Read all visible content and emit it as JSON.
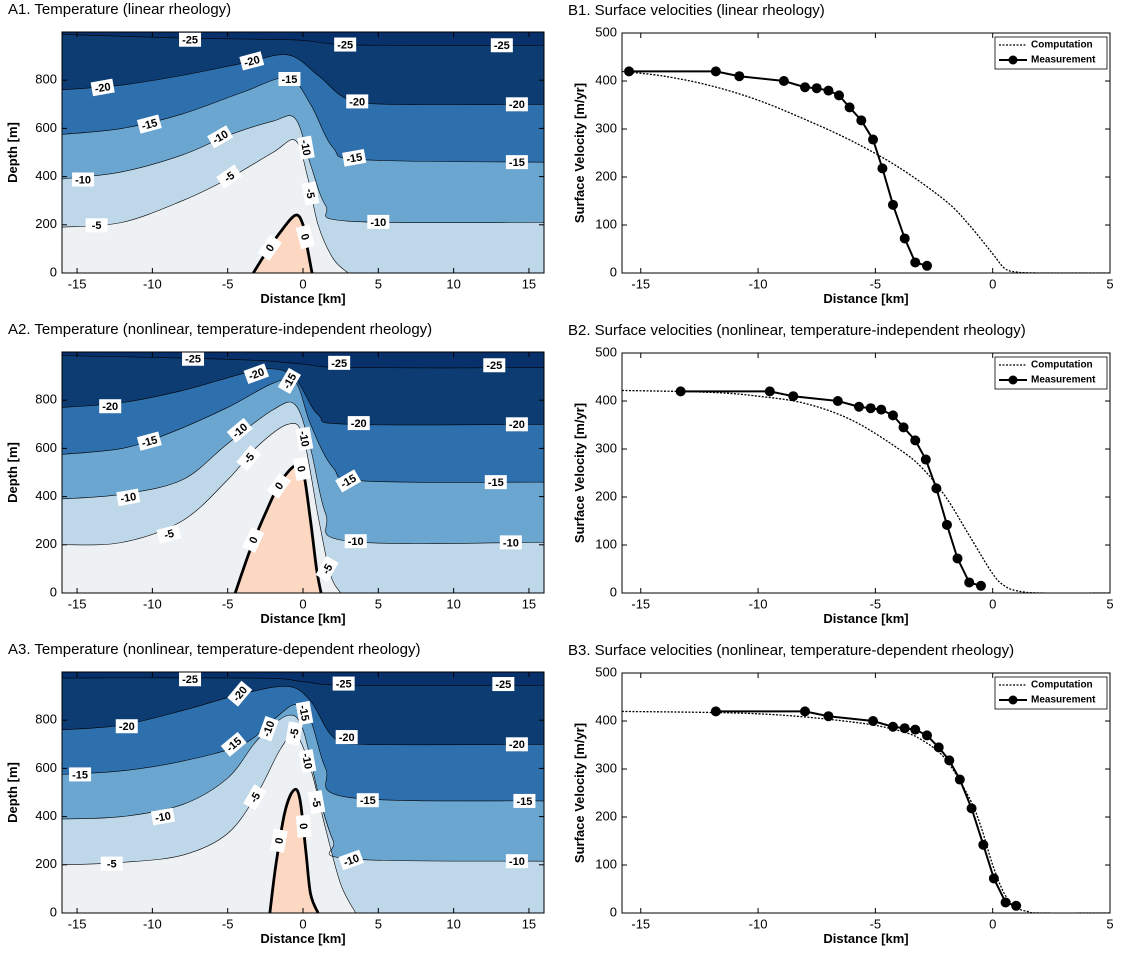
{
  "chart_data": [
    {
      "type": "contour",
      "title": "A1. Temperature (linear rheology)",
      "xlabel": "Distance [km]",
      "ylabel": "Depth [m]",
      "xlim": [
        -16,
        16
      ],
      "ylim": [
        0,
        1000
      ],
      "xticks": [
        -15,
        -10,
        -5,
        0,
        5,
        10,
        15
      ],
      "yticks": [
        0,
        200,
        400,
        600,
        800
      ],
      "background_color": "#08306b",
      "contours": [
        {
          "level": -25,
          "color": "#0d3c72",
          "x": [
            -16,
            -8,
            -3,
            0,
            2,
            5,
            16
          ],
          "y": [
            990,
            975,
            970,
            965,
            950,
            945,
            945
          ]
        },
        {
          "level": -20,
          "color": "#2e6fae",
          "x": [
            -16,
            -12,
            -8,
            -4,
            -1,
            1,
            3,
            6,
            16
          ],
          "y": [
            760,
            780,
            820,
            870,
            905,
            820,
            720,
            700,
            700
          ]
        },
        {
          "level": -15,
          "color": "#6aa6d0",
          "x": [
            -16,
            -12,
            -8,
            -4,
            -1,
            0.5,
            2,
            4,
            16
          ],
          "y": [
            575,
            600,
            660,
            750,
            810,
            700,
            520,
            470,
            460
          ]
        },
        {
          "level": -10,
          "color": "#bed8ea",
          "x": [
            -16,
            -12,
            -8,
            -5,
            -2,
            -0.5,
            0.5,
            1.5,
            3,
            16
          ],
          "y": [
            390,
            420,
            490,
            570,
            630,
            640,
            450,
            280,
            215,
            210
          ]
        },
        {
          "level": -5,
          "color": "#eef1f3",
          "x": [
            -16,
            -12,
            -8,
            -5,
            -2,
            -0.5,
            0.3,
            1,
            2,
            3
          ],
          "y": [
            190,
            210,
            300,
            390,
            500,
            550,
            400,
            200,
            60,
            0
          ]
        },
        {
          "level": 0,
          "color": "#fcd8c3",
          "x": [
            -3.3,
            -2.5,
            -1.5,
            -0.5,
            0,
            0.3,
            0.6
          ],
          "y": [
            0,
            80,
            170,
            240,
            200,
            100,
            0
          ]
        }
      ]
    },
    {
      "type": "line",
      "title": "B1. Surface velocities (linear rheology)",
      "xlabel": "Distance [km]",
      "ylabel": "Surface Velocity [m/yr]",
      "xlim": [
        -15.8,
        5
      ],
      "ylim": [
        0,
        500
      ],
      "xticks": [
        -15,
        -10,
        -5,
        0,
        5
      ],
      "yticks": [
        0,
        100,
        200,
        300,
        400,
        500
      ],
      "legend": "upper right",
      "series": [
        {
          "name": "Computation",
          "color": "#000000",
          "style": "dotted",
          "x": [
            -15.8,
            -14,
            -12,
            -10,
            -8,
            -6,
            -4,
            -2,
            -1,
            0,
            0.5,
            1,
            2,
            5
          ],
          "values": [
            420,
            410,
            390,
            360,
            320,
            275,
            220,
            150,
            100,
            40,
            10,
            2,
            0,
            0
          ]
        },
        {
          "name": "Measurement",
          "color": "#000000",
          "style": "solid",
          "marker": "circle",
          "x": [
            -15.5,
            -11.8,
            -10.8,
            -8.9,
            -8.0,
            -7.5,
            -7.0,
            -6.55,
            -6.1,
            -5.6,
            -5.1,
            -4.7,
            -4.25,
            -3.75,
            -3.3,
            -2.8
          ],
          "values": [
            420,
            420,
            410,
            400,
            387,
            385,
            380,
            370,
            345,
            318,
            278,
            218,
            142,
            72,
            22,
            15
          ]
        }
      ]
    },
    {
      "type": "contour",
      "title": "A2. Temperature (nonlinear, temperature-independent rheology)",
      "xlabel": "Distance [km]",
      "ylabel": "Depth [m]",
      "xlim": [
        -16,
        16
      ],
      "ylim": [
        0,
        1000
      ],
      "xticks": [
        -15,
        -10,
        -5,
        0,
        5,
        10,
        15
      ],
      "yticks": [
        0,
        200,
        400,
        600,
        800
      ],
      "background_color": "#08306b",
      "contours": [
        {
          "level": -25,
          "color": "#0d3c72",
          "x": [
            -16,
            -8,
            -3,
            0,
            3,
            16
          ],
          "y": [
            985,
            975,
            965,
            950,
            935,
            935
          ]
        },
        {
          "level": -20,
          "color": "#2e6fae",
          "x": [
            -16,
            -12,
            -8,
            -4,
            -2,
            -0.5,
            1,
            3,
            16
          ],
          "y": [
            770,
            790,
            840,
            910,
            930,
            890,
            740,
            700,
            700
          ]
        },
        {
          "level": -15,
          "color": "#6aa6d0",
          "x": [
            -16,
            -12,
            -9,
            -5,
            -2,
            -0.5,
            0.5,
            2,
            4,
            16
          ],
          "y": [
            575,
            600,
            660,
            770,
            870,
            875,
            700,
            520,
            465,
            460
          ]
        },
        {
          "level": -10,
          "color": "#bed8ea",
          "x": [
            -16,
            -12,
            -8,
            -5,
            -2,
            -0.5,
            0.5,
            1.5,
            3,
            16
          ],
          "y": [
            390,
            410,
            470,
            620,
            760,
            780,
            600,
            330,
            215,
            210
          ]
        },
        {
          "level": -5,
          "color": "#eef1f3",
          "x": [
            -16,
            -12,
            -8,
            -5,
            -3,
            -1,
            0,
            1,
            1.8,
            2.5
          ],
          "y": [
            200,
            210,
            300,
            470,
            610,
            700,
            650,
            320,
            80,
            0
          ]
        },
        {
          "level": 0,
          "color": "#fcd8c3",
          "x": [
            -4.5,
            -3.5,
            -2.5,
            -1.5,
            -0.5,
            0,
            0.5,
            0.9,
            1.2
          ],
          "y": [
            0,
            180,
            330,
            460,
            530,
            510,
            300,
            100,
            0
          ]
        }
      ]
    },
    {
      "type": "line",
      "title": "B2. Surface velocities (nonlinear, temperature-independent rheology)",
      "xlabel": "Distance [km]",
      "ylabel": "Surface Velocity [m/yr]",
      "xlim": [
        -15.8,
        5
      ],
      "ylim": [
        0,
        500
      ],
      "xticks": [
        -15,
        -10,
        -5,
        0,
        5
      ],
      "yticks": [
        0,
        100,
        200,
        300,
        400,
        500
      ],
      "legend": "upper right",
      "series": [
        {
          "name": "Computation",
          "color": "#000000",
          "style": "dotted",
          "x": [
            -15.8,
            -12,
            -10,
            -8,
            -6,
            -4,
            -3,
            -2,
            -1,
            0,
            0.5,
            1,
            2,
            5
          ],
          "values": [
            422,
            418,
            410,
            395,
            360,
            300,
            260,
            200,
            120,
            40,
            15,
            5,
            0,
            0
          ]
        },
        {
          "name": "Measurement",
          "color": "#000000",
          "style": "solid",
          "marker": "circle",
          "x": [
            -13.3,
            -9.5,
            -8.5,
            -6.6,
            -5.7,
            -5.2,
            -4.75,
            -4.25,
            -3.8,
            -3.3,
            -2.85,
            -2.4,
            -1.95,
            -1.5,
            -1.0,
            -0.5
          ],
          "values": [
            420,
            420,
            410,
            400,
            388,
            385,
            382,
            370,
            345,
            318,
            278,
            218,
            142,
            72,
            22,
            15
          ]
        }
      ]
    },
    {
      "type": "contour",
      "title": "A3. Temperature (nonlinear, temperature-dependent rheology)",
      "xlabel": "Distance [km]",
      "ylabel": "Depth [m]",
      "xlim": [
        -16,
        16
      ],
      "ylim": [
        0,
        1000
      ],
      "xticks": [
        -15,
        -10,
        -5,
        0,
        5,
        10,
        15
      ],
      "yticks": [
        0,
        200,
        400,
        600,
        800
      ],
      "background_color": "#08306b",
      "contours": [
        {
          "level": -25,
          "color": "#0d3c72",
          "x": [
            -16,
            -3,
            0,
            3,
            16
          ],
          "y": [
            975,
            975,
            960,
            945,
            945
          ]
        },
        {
          "level": -20,
          "color": "#2e6fae",
          "x": [
            -16,
            -12,
            -8,
            -4,
            -1,
            0.5,
            2,
            4,
            16
          ],
          "y": [
            760,
            780,
            840,
            910,
            940,
            880,
            730,
            700,
            700
          ]
        },
        {
          "level": -15,
          "color": "#6aa6d0",
          "x": [
            -16,
            -12,
            -8,
            -4,
            -2,
            -0.5,
            0.5,
            1.5,
            3,
            16
          ],
          "y": [
            575,
            590,
            630,
            700,
            800,
            865,
            800,
            600,
            480,
            465
          ]
        },
        {
          "level": -10,
          "color": "#bed8ea",
          "x": [
            -16,
            -12,
            -8,
            -5,
            -3,
            -1,
            0,
            1,
            2,
            3,
            16
          ],
          "y": [
            390,
            400,
            450,
            560,
            720,
            820,
            760,
            500,
            300,
            225,
            215
          ]
        },
        {
          "level": -5,
          "color": "#eef1f3",
          "x": [
            -16,
            -12,
            -8,
            -5,
            -3,
            -1.5,
            -0.5,
            0.5,
            1.5,
            2.5,
            3.5
          ],
          "y": [
            200,
            210,
            240,
            330,
            500,
            680,
            740,
            600,
            350,
            120,
            0
          ]
        },
        {
          "level": 0,
          "color": "#fcd8c3",
          "x": [
            -2.2,
            -1.8,
            -1.2,
            -0.6,
            -0.2,
            0.2,
            0.5,
            1.0
          ],
          "y": [
            0,
            200,
            420,
            510,
            470,
            250,
            80,
            0
          ]
        }
      ]
    },
    {
      "type": "line",
      "title": "B3. Surface velocities (nonlinear, temperature-dependent rheology)",
      "xlabel": "Distance [km]",
      "ylabel": "Surface Velocity [m/yr]",
      "xlim": [
        -15.8,
        5
      ],
      "ylim": [
        0,
        500
      ],
      "xticks": [
        -15,
        -10,
        -5,
        0,
        5
      ],
      "yticks": [
        0,
        100,
        200,
        300,
        400,
        500
      ],
      "legend": "upper right",
      "series": [
        {
          "name": "Computation",
          "color": "#000000",
          "style": "dotted",
          "x": [
            -15.8,
            -10,
            -6,
            -4,
            -3,
            -2,
            -1,
            -0.5,
            0,
            0.5,
            1,
            1.5,
            2,
            5
          ],
          "values": [
            420,
            415,
            398,
            380,
            360,
            320,
            240,
            180,
            100,
            40,
            12,
            3,
            0,
            0
          ]
        },
        {
          "name": "Measurement",
          "color": "#000000",
          "style": "solid",
          "marker": "circle",
          "x": [
            -11.8,
            -8.0,
            -7.0,
            -5.1,
            -4.25,
            -3.75,
            -3.3,
            -2.8,
            -2.3,
            -1.85,
            -1.4,
            -0.9,
            -0.4,
            0.05,
            0.55,
            1.0
          ],
          "values": [
            420,
            420,
            410,
            400,
            388,
            385,
            382,
            370,
            345,
            318,
            278,
            218,
            142,
            72,
            22,
            15
          ]
        }
      ]
    }
  ]
}
